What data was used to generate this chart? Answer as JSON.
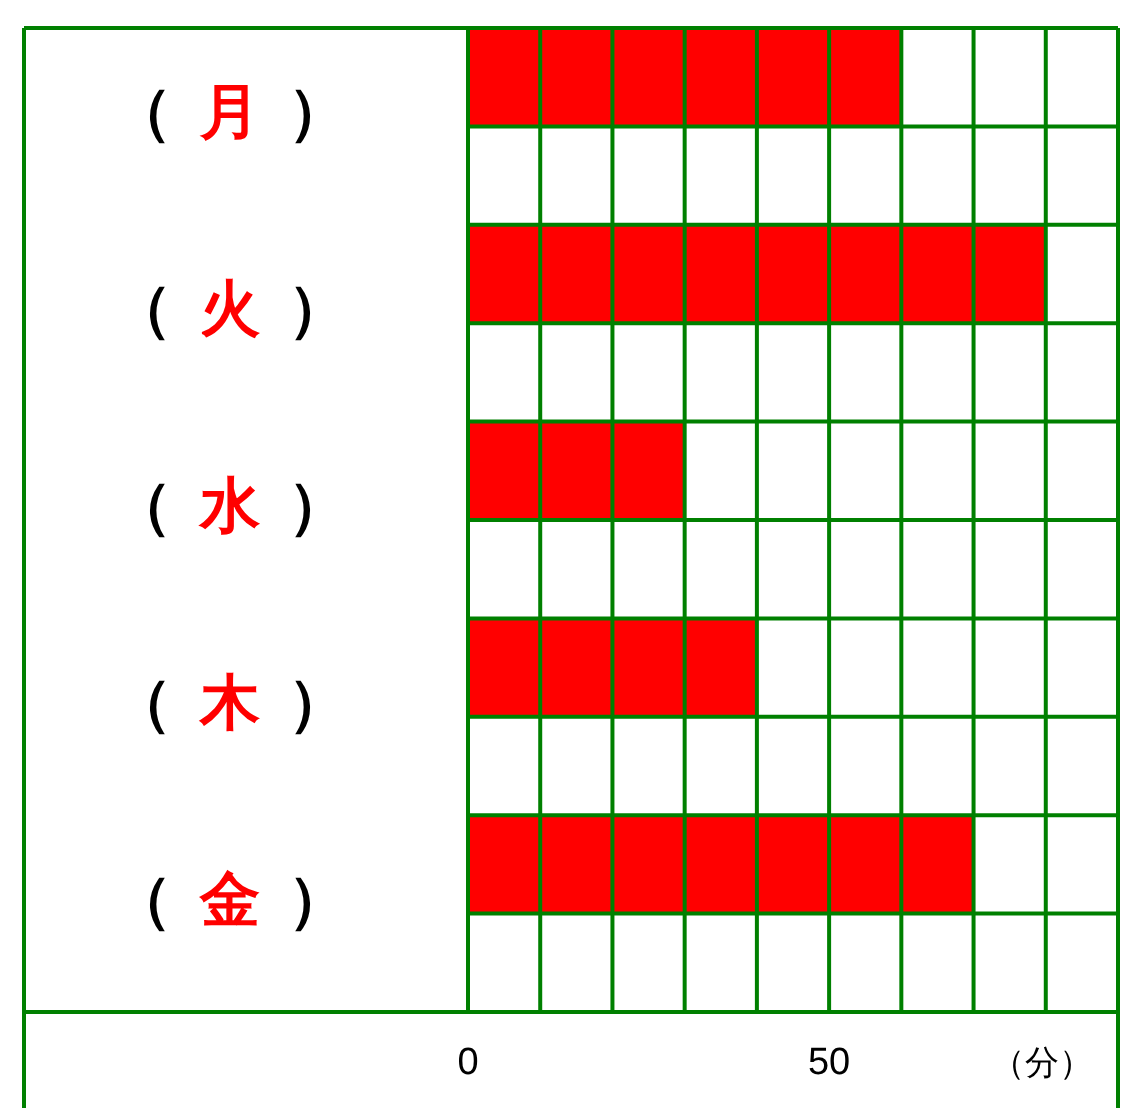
{
  "chart_data": {
    "type": "bar",
    "orientation": "horizontal",
    "categories": [
      "（月）",
      "（火）",
      "（水）",
      "（木）",
      "（金）"
    ],
    "series": [
      {
        "color": "#ff0000",
        "values": [
          60,
          80,
          30,
          40,
          70
        ]
      }
    ],
    "xlim": [
      0,
      90
    ],
    "xticks": [
      0,
      {
        "value": 10,
        "label": null
      },
      {
        "value": 20,
        "label": null
      },
      {
        "value": 30,
        "label": null
      },
      {
        "value": 40,
        "label": null
      },
      50,
      {
        "value": 60,
        "label": null
      },
      {
        "value": 70,
        "label": null
      },
      {
        "value": 80,
        "label": null
      },
      {
        "value": 90,
        "label": null
      }
    ],
    "xlabel": "（分）",
    "grid": true
  }
}
